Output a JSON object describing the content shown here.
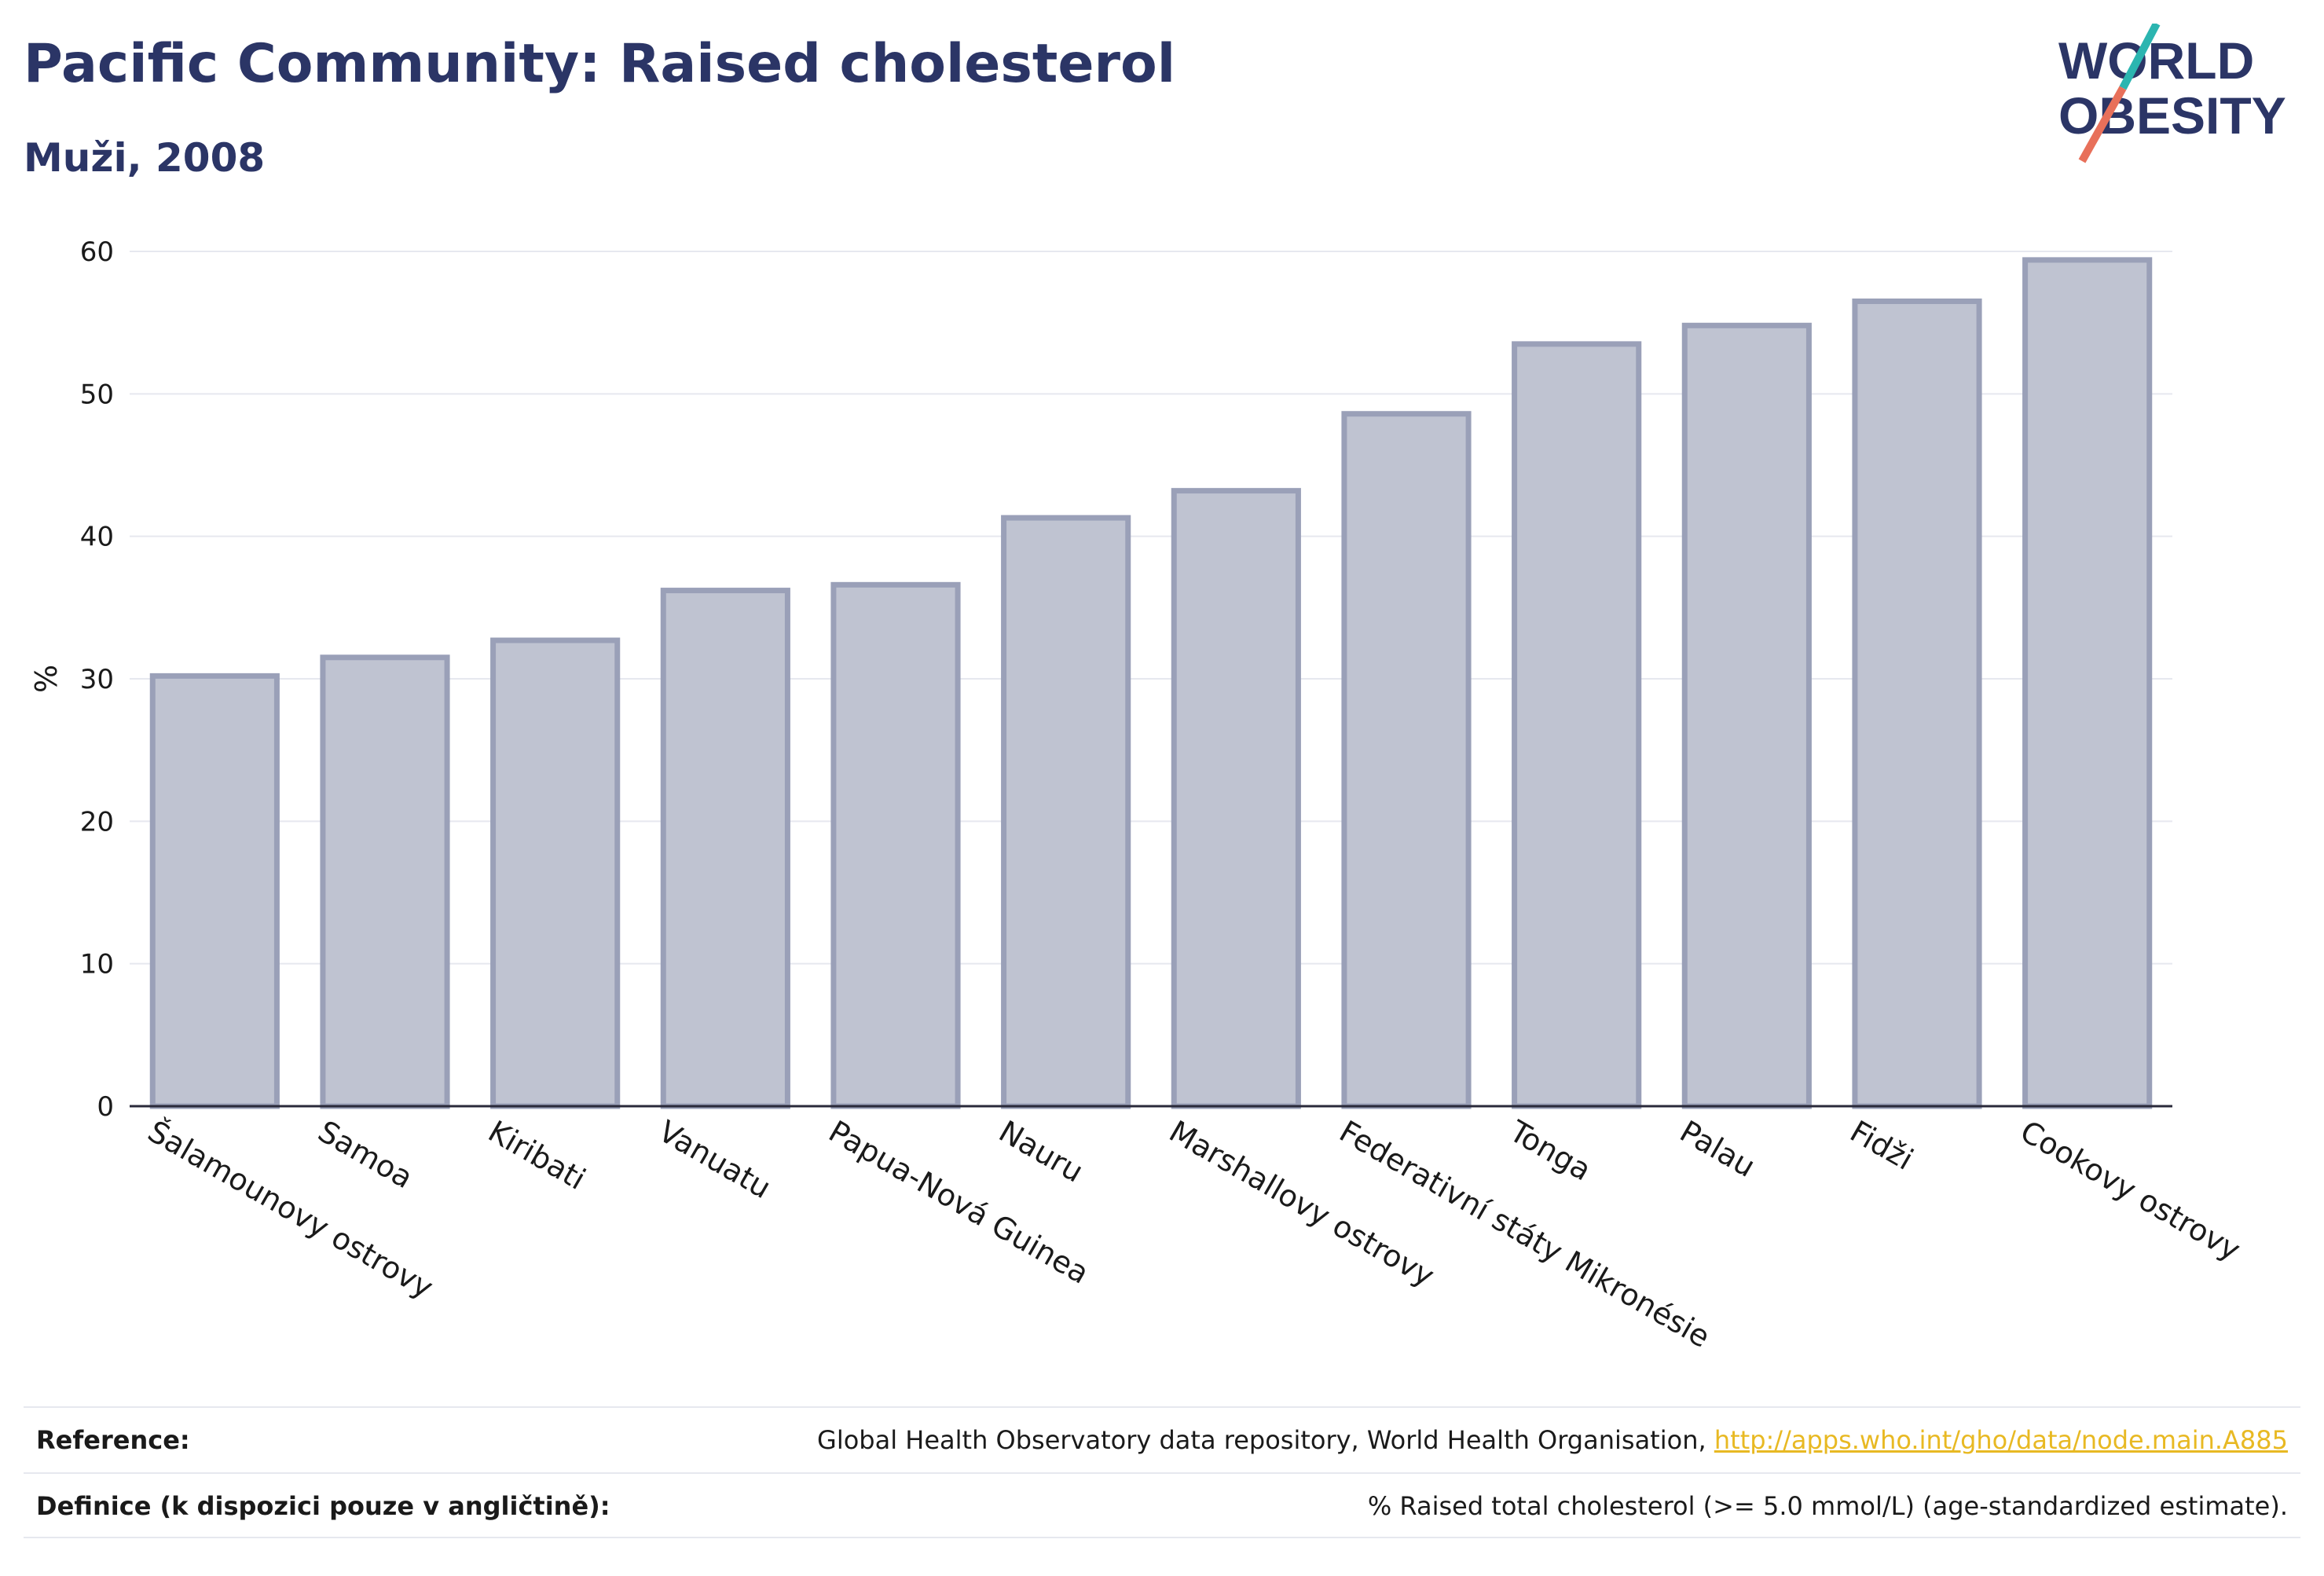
{
  "header": {
    "title": "Pacific Community: Raised cholesterol",
    "subtitle": "Muži, 2008"
  },
  "logo": {
    "line1": "WORLD",
    "line2": "OBESITY",
    "colors": {
      "text": "#2b3566",
      "slash_top": "#2bb5b0",
      "slash_bottom": "#e8705a"
    }
  },
  "chart_data": {
    "type": "bar",
    "ylabel": "%",
    "ylim": [
      0,
      60
    ],
    "yticks": [
      0,
      10,
      20,
      30,
      40,
      50,
      60
    ],
    "grid": true,
    "bar_color": "#bfc3d1",
    "bar_edge_color": "#9aa0b8",
    "categories": [
      "Šalamounovy ostrovy",
      "Samoa",
      "Kiribati",
      "Vanuatu",
      "Papua-Nová Guinea",
      "Nauru",
      "Marshallovy ostrovy",
      "Federativní státy Mikronésie",
      "Tonga",
      "Palau",
      "Fidži",
      "Cookovy ostrovy"
    ],
    "values": [
      30.2,
      31.5,
      32.7,
      36.2,
      36.6,
      41.3,
      43.2,
      48.6,
      53.5,
      54.8,
      56.5,
      59.4
    ]
  },
  "footer": {
    "reference_label": "Reference:",
    "reference_text": "Global Health Observatory data repository, World Health Organisation, ",
    "reference_link": "http://apps.who.int/gho/data/node.main.A885",
    "definition_label": "Definice (k dispozici pouze v angličtině):",
    "definition_text": "% Raised total cholesterol (>= 5.0 mmol/L) (age-standardized estimate)."
  }
}
